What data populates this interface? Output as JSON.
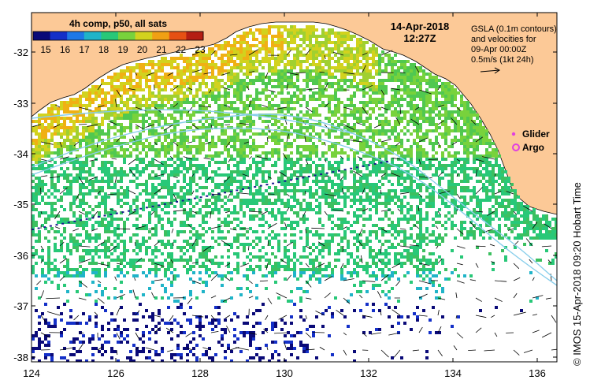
{
  "colorbar": {
    "title": "4h comp, p50, all sats",
    "ticks": [
      "15",
      "16",
      "17",
      "18",
      "19",
      "20",
      "21",
      "22",
      "23"
    ],
    "colors": [
      "#0a0a78",
      "#1430c8",
      "#1e78e6",
      "#20b4c8",
      "#28c878",
      "#78d23c",
      "#d2d21e",
      "#f0a014",
      "#e65014",
      "#b41e14"
    ]
  },
  "datetime": {
    "date": "14-Apr-2018",
    "time": "12:27Z"
  },
  "info": {
    "line1": "GSLA (0.1m contours)",
    "line2": "and velocities for",
    "line3": "09-Apr 00:00Z",
    "line4": "0.5m/s (1kt 24h)"
  },
  "legend": {
    "glider": "Glider",
    "argo": "Argo",
    "glider_color": "#e040e0",
    "argo_color": "#e040e0"
  },
  "credit": "© IMOS 15-Apr-2018 09:20 Hobart Time",
  "axes": {
    "x_ticks": [
      "124",
      "126",
      "128",
      "130",
      "132",
      "134",
      "136"
    ],
    "y_ticks": [
      "-32",
      "-33",
      "-34",
      "-35",
      "-36",
      "-37",
      "-38"
    ]
  },
  "colors": {
    "land": "#fcc997",
    "contour": "#87ceeb",
    "track": "#1a1a8c"
  }
}
